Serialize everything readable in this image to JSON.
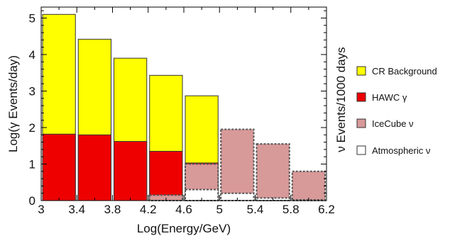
{
  "chart_data": {
    "type": "bar",
    "x_axis": {
      "label": "Log(Energy/GeV)",
      "range": [
        3,
        6.2
      ],
      "ticks": [
        "3",
        "3.4",
        "3.8",
        "4.2",
        "4.6",
        "5",
        "5.4",
        "5.8",
        "6.2"
      ],
      "tick_values": [
        3,
        3.4,
        3.8,
        4.2,
        4.6,
        5,
        5.4,
        5.8,
        6.2
      ]
    },
    "y_axis": {
      "label": "Log(γ Events/day)",
      "range": [
        0,
        5.3
      ],
      "ticks": [
        "0",
        "1",
        "2",
        "3",
        "4",
        "5"
      ],
      "tick_values": [
        0,
        1,
        2,
        3,
        4,
        5
      ]
    },
    "y_axis_right": {
      "label": "ν Events/1000 days"
    },
    "bins": [
      {
        "x0": 3.0,
        "x1": 3.4
      },
      {
        "x0": 3.4,
        "x1": 3.8
      },
      {
        "x0": 3.8,
        "x1": 4.2
      },
      {
        "x0": 4.2,
        "x1": 4.6
      },
      {
        "x0": 4.6,
        "x1": 5.0
      },
      {
        "x0": 5.0,
        "x1": 5.4
      },
      {
        "x0": 5.4,
        "x1": 5.8
      },
      {
        "x0": 5.8,
        "x1": 6.2
      }
    ],
    "series": [
      {
        "name": "CR Background",
        "color": "#ffff00",
        "style": "solid",
        "values": [
          5.1,
          4.42,
          3.9,
          3.43,
          2.87,
          null,
          null,
          null
        ]
      },
      {
        "name": "HAWC γ",
        "color": "#ee0000",
        "style": "solid",
        "values": [
          1.82,
          1.8,
          1.62,
          1.35,
          1.03,
          null,
          null,
          null
        ]
      },
      {
        "name": "IceCube ν",
        "color": "#d89999",
        "style": "dashed",
        "values": [
          null,
          null,
          null,
          0.15,
          1.0,
          1.95,
          1.55,
          0.8
        ]
      },
      {
        "name": "Atmospheric ν",
        "color": "#ffffff",
        "style": "dashed",
        "values": [
          null,
          null,
          null,
          null,
          0.3,
          0.2,
          0.07,
          0.02
        ]
      }
    ],
    "legend": {
      "position": "right"
    },
    "grid": false
  }
}
